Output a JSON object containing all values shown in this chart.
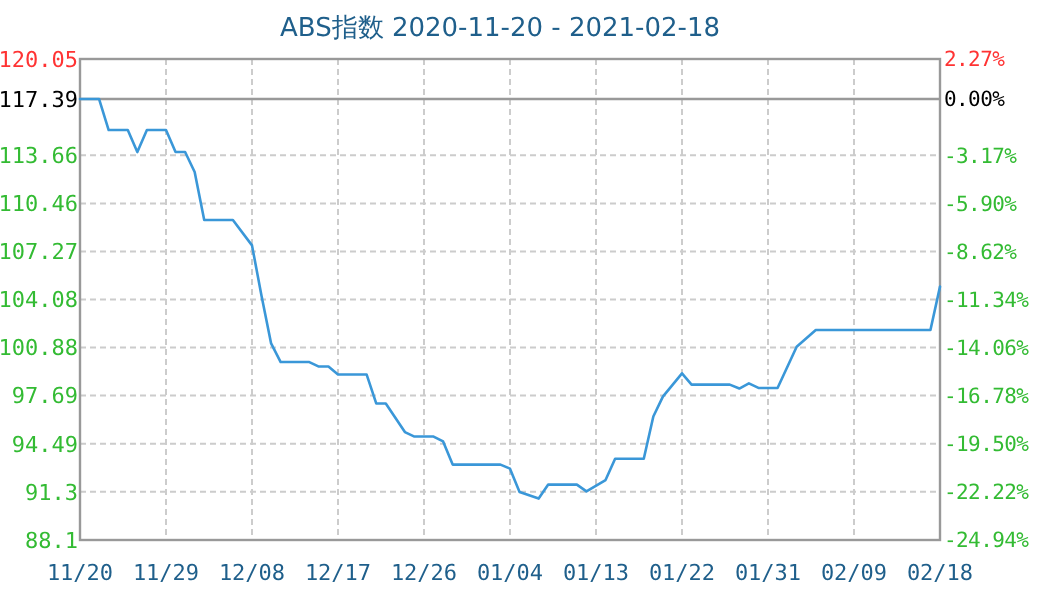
{
  "chart_data": {
    "type": "line",
    "title": "ABS指数 2020-11-20 - 2021-02-18",
    "x": [
      "2020-11-20",
      "2020-11-22",
      "2020-11-23",
      "2020-11-25",
      "2020-11-26",
      "2020-11-27",
      "2020-11-29",
      "2020-11-30",
      "2020-12-01",
      "2020-12-02",
      "2020-12-03",
      "2020-12-06",
      "2020-12-08",
      "2020-12-09",
      "2020-12-10",
      "2020-12-11",
      "2020-12-14",
      "2020-12-15",
      "2020-12-16",
      "2020-12-17",
      "2020-12-20",
      "2020-12-21",
      "2020-12-22",
      "2020-12-24",
      "2020-12-25",
      "2020-12-27",
      "2020-12-28",
      "2020-12-29",
      "2021-01-03",
      "2021-01-04",
      "2021-01-05",
      "2021-01-07",
      "2021-01-08",
      "2021-01-11",
      "2021-01-12",
      "2021-01-14",
      "2021-01-15",
      "2021-01-18",
      "2021-01-19",
      "2021-01-20",
      "2021-01-22",
      "2021-01-23",
      "2021-01-27",
      "2021-01-28",
      "2021-01-29",
      "2021-01-30",
      "2021-02-01",
      "2021-02-03",
      "2021-02-05",
      "2021-02-17",
      "2021-02-18"
    ],
    "series": [
      {
        "color": "#3a97d8",
        "values": [
          117.39,
          117.39,
          115.33,
          115.33,
          113.87,
          115.33,
          115.33,
          113.87,
          113.87,
          112.54,
          109.36,
          109.36,
          107.67,
          104.3,
          101.16,
          99.92,
          99.92,
          99.62,
          99.62,
          99.09,
          99.09,
          97.17,
          97.17,
          95.27,
          94.97,
          94.97,
          94.65,
          93.11,
          93.11,
          92.84,
          91.29,
          90.85,
          91.78,
          91.78,
          91.33,
          92.08,
          93.5,
          93.5,
          96.3,
          97.62,
          99.17,
          98.42,
          98.42,
          98.16,
          98.5,
          98.2,
          98.2,
          100.94,
          102.05,
          102.05,
          104.93
        ]
      }
    ],
    "xlim": [
      "2020-11-20",
      "2021-02-18"
    ],
    "xticks": [
      {
        "value": "2020-11-20",
        "label": "11/20"
      },
      {
        "value": "2020-11-29",
        "label": "11/29"
      },
      {
        "value": "2020-12-08",
        "label": "12/08"
      },
      {
        "value": "2020-12-17",
        "label": "12/17"
      },
      {
        "value": "2020-12-26",
        "label": "12/26"
      },
      {
        "value": "2021-01-04",
        "label": "01/04"
      },
      {
        "value": "2021-01-13",
        "label": "01/13"
      },
      {
        "value": "2021-01-22",
        "label": "01/22"
      },
      {
        "value": "2021-01-31",
        "label": "01/31"
      },
      {
        "value": "2021-02-09",
        "label": "02/09"
      },
      {
        "value": "2021-02-18",
        "label": "02/18"
      }
    ],
    "ylim": [
      88.1,
      120.05
    ],
    "yticks": [
      88.1,
      91.3,
      94.49,
      97.69,
      100.88,
      104.08,
      107.27,
      110.46,
      113.66,
      117.39,
      120.05
    ],
    "y2lim": [
      -24.94,
      2.27
    ],
    "y2ticks": [
      {
        "value": -24.94,
        "label": "-24.94%"
      },
      {
        "value": -22.22,
        "label": "-22.22%"
      },
      {
        "value": -19.5,
        "label": "-19.50%"
      },
      {
        "value": -16.78,
        "label": "-16.78%"
      },
      {
        "value": -14.06,
        "label": "-14.06%"
      },
      {
        "value": -11.34,
        "label": "-11.34%"
      },
      {
        "value": -8.62,
        "label": "-8.62%"
      },
      {
        "value": -5.9,
        "label": "-5.90%"
      },
      {
        "value": -3.17,
        "label": "-3.17%"
      },
      {
        "value": 0,
        "label": "0.00%"
      },
      {
        "value": 2.27,
        "label": "2.27%"
      }
    ],
    "ref_lines": [
      {
        "axis": "y",
        "value": 117.39,
        "color": "#999999"
      }
    ],
    "grid": true,
    "marker": "none",
    "line_style": "solid"
  }
}
